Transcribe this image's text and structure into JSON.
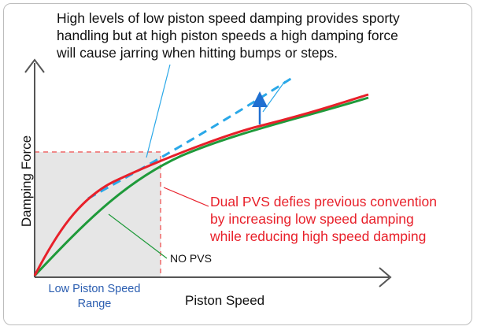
{
  "annotations": {
    "top_note": [
      "High levels of low piston speed damping provides sporty",
      "handling but at high piston speeds a high damping force",
      "will cause jarring when hitting bumps or steps."
    ],
    "dual_pvs_note": [
      "Dual PVS defies previous convention",
      "by increasing low speed damping",
      "while reducing high speed damping"
    ],
    "no_pvs_label": "NO PVS",
    "low_range_label": [
      "Low Piston Speed",
      "Range"
    ]
  },
  "axes": {
    "x_label": "Piston Speed",
    "y_label": "Damping Force"
  },
  "colors": {
    "red_curve": "#e8202a",
    "green_curve": "#1f9a3a",
    "blue_dashed": "#2aa8e8",
    "range_box_fill": "#e6e6e6",
    "range_box_border": "#f08a8a",
    "axis": "#555555"
  }
}
